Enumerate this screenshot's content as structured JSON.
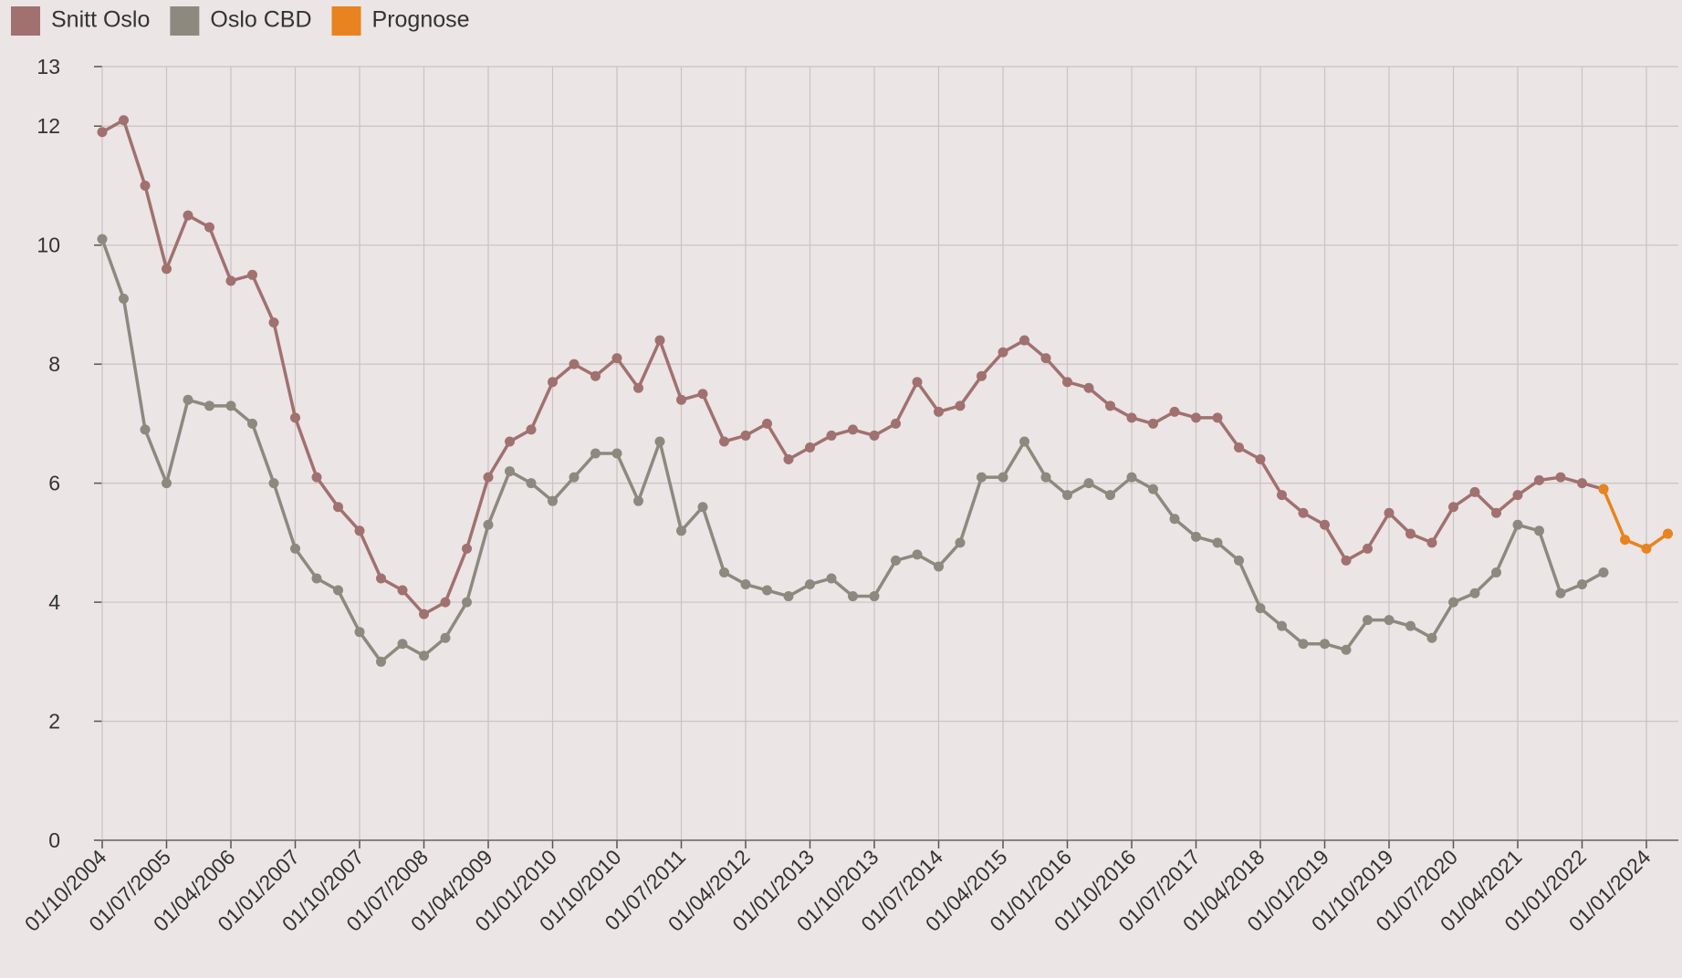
{
  "chart_data": {
    "type": "line",
    "categories": [
      "01/10/2004",
      null,
      null,
      "01/07/2005",
      null,
      null,
      "01/04/2006",
      null,
      null,
      "01/01/2007",
      null,
      null,
      "01/10/2007",
      null,
      null,
      "01/07/2008",
      null,
      null,
      "01/04/2009",
      null,
      null,
      "01/01/2010",
      null,
      null,
      "01/10/2010",
      null,
      null,
      "01/07/2011",
      null,
      null,
      "01/04/2012",
      null,
      null,
      "01/01/2013",
      null,
      null,
      "01/10/2013",
      null,
      null,
      "01/07/2014",
      null,
      null,
      "01/04/2015",
      null,
      null,
      "01/01/2016",
      null,
      null,
      "01/10/2016",
      null,
      null,
      "01/07/2017",
      null,
      null,
      "01/04/2018",
      null,
      null,
      "01/01/2019",
      null,
      null,
      "01/10/2019",
      null,
      null,
      "01/07/2020",
      null,
      null,
      "01/04/2021",
      null,
      null,
      "01/01/2022",
      null,
      null,
      "01/01/2024",
      null
    ],
    "series": [
      {
        "name": "Snitt Oslo",
        "color": "#a1716f",
        "values": [
          11.9,
          12.1,
          11.0,
          9.6,
          10.5,
          10.3,
          9.4,
          9.5,
          8.7,
          7.1,
          6.1,
          5.6,
          5.2,
          4.4,
          4.2,
          3.8,
          4.0,
          4.9,
          6.1,
          6.7,
          6.9,
          7.7,
          8.0,
          7.8,
          8.1,
          7.6,
          8.4,
          7.4,
          7.5,
          6.7,
          6.8,
          7.0,
          6.4,
          6.6,
          6.8,
          6.9,
          6.8,
          7.0,
          7.7,
          7.2,
          7.3,
          7.8,
          8.2,
          8.4,
          8.1,
          7.7,
          7.6,
          7.3,
          7.1,
          7.0,
          7.2,
          7.1,
          7.1,
          6.6,
          6.4,
          5.8,
          5.5,
          5.3,
          4.7,
          4.9,
          5.5,
          5.15,
          5.0,
          5.6,
          5.85,
          5.5,
          5.8,
          6.05,
          6.1,
          6.0,
          5.9,
          null,
          null,
          null
        ]
      },
      {
        "name": "Oslo CBD",
        "color": "#8d897e",
        "values": [
          10.1,
          9.1,
          6.9,
          6.0,
          7.4,
          7.3,
          7.3,
          7.0,
          6.0,
          4.9,
          4.4,
          4.2,
          3.5,
          3.0,
          3.3,
          3.1,
          3.4,
          4.0,
          5.3,
          6.2,
          6.0,
          5.7,
          6.1,
          6.5,
          6.5,
          5.7,
          6.7,
          5.2,
          5.6,
          4.5,
          4.3,
          4.2,
          4.1,
          4.3,
          4.4,
          4.1,
          4.1,
          4.7,
          4.8,
          4.6,
          5.0,
          6.1,
          6.1,
          6.7,
          6.1,
          5.8,
          6.0,
          5.8,
          6.1,
          5.9,
          5.4,
          5.1,
          5.0,
          4.7,
          3.9,
          3.6,
          3.3,
          3.3,
          3.2,
          3.7,
          3.7,
          3.6,
          3.4,
          4.0,
          4.15,
          4.5,
          5.3,
          5.2,
          4.15,
          4.3,
          4.5,
          null,
          null,
          null
        ]
      },
      {
        "name": "Prognose",
        "color": "#e8831f",
        "values": [
          null,
          null,
          null,
          null,
          null,
          null,
          null,
          null,
          null,
          null,
          null,
          null,
          null,
          null,
          null,
          null,
          null,
          null,
          null,
          null,
          null,
          null,
          null,
          null,
          null,
          null,
          null,
          null,
          null,
          null,
          null,
          null,
          null,
          null,
          null,
          null,
          null,
          null,
          null,
          null,
          null,
          null,
          null,
          null,
          null,
          null,
          null,
          null,
          null,
          null,
          null,
          null,
          null,
          null,
          null,
          null,
          null,
          null,
          null,
          null,
          null,
          null,
          null,
          null,
          null,
          null,
          null,
          null,
          null,
          null,
          5.9,
          5.05,
          4.9,
          5.15
        ]
      }
    ],
    "ylim": [
      0,
      13
    ],
    "yticks": [
      0,
      2,
      4,
      6,
      8,
      10,
      12,
      13
    ],
    "grid": true,
    "legend": "top-left"
  }
}
